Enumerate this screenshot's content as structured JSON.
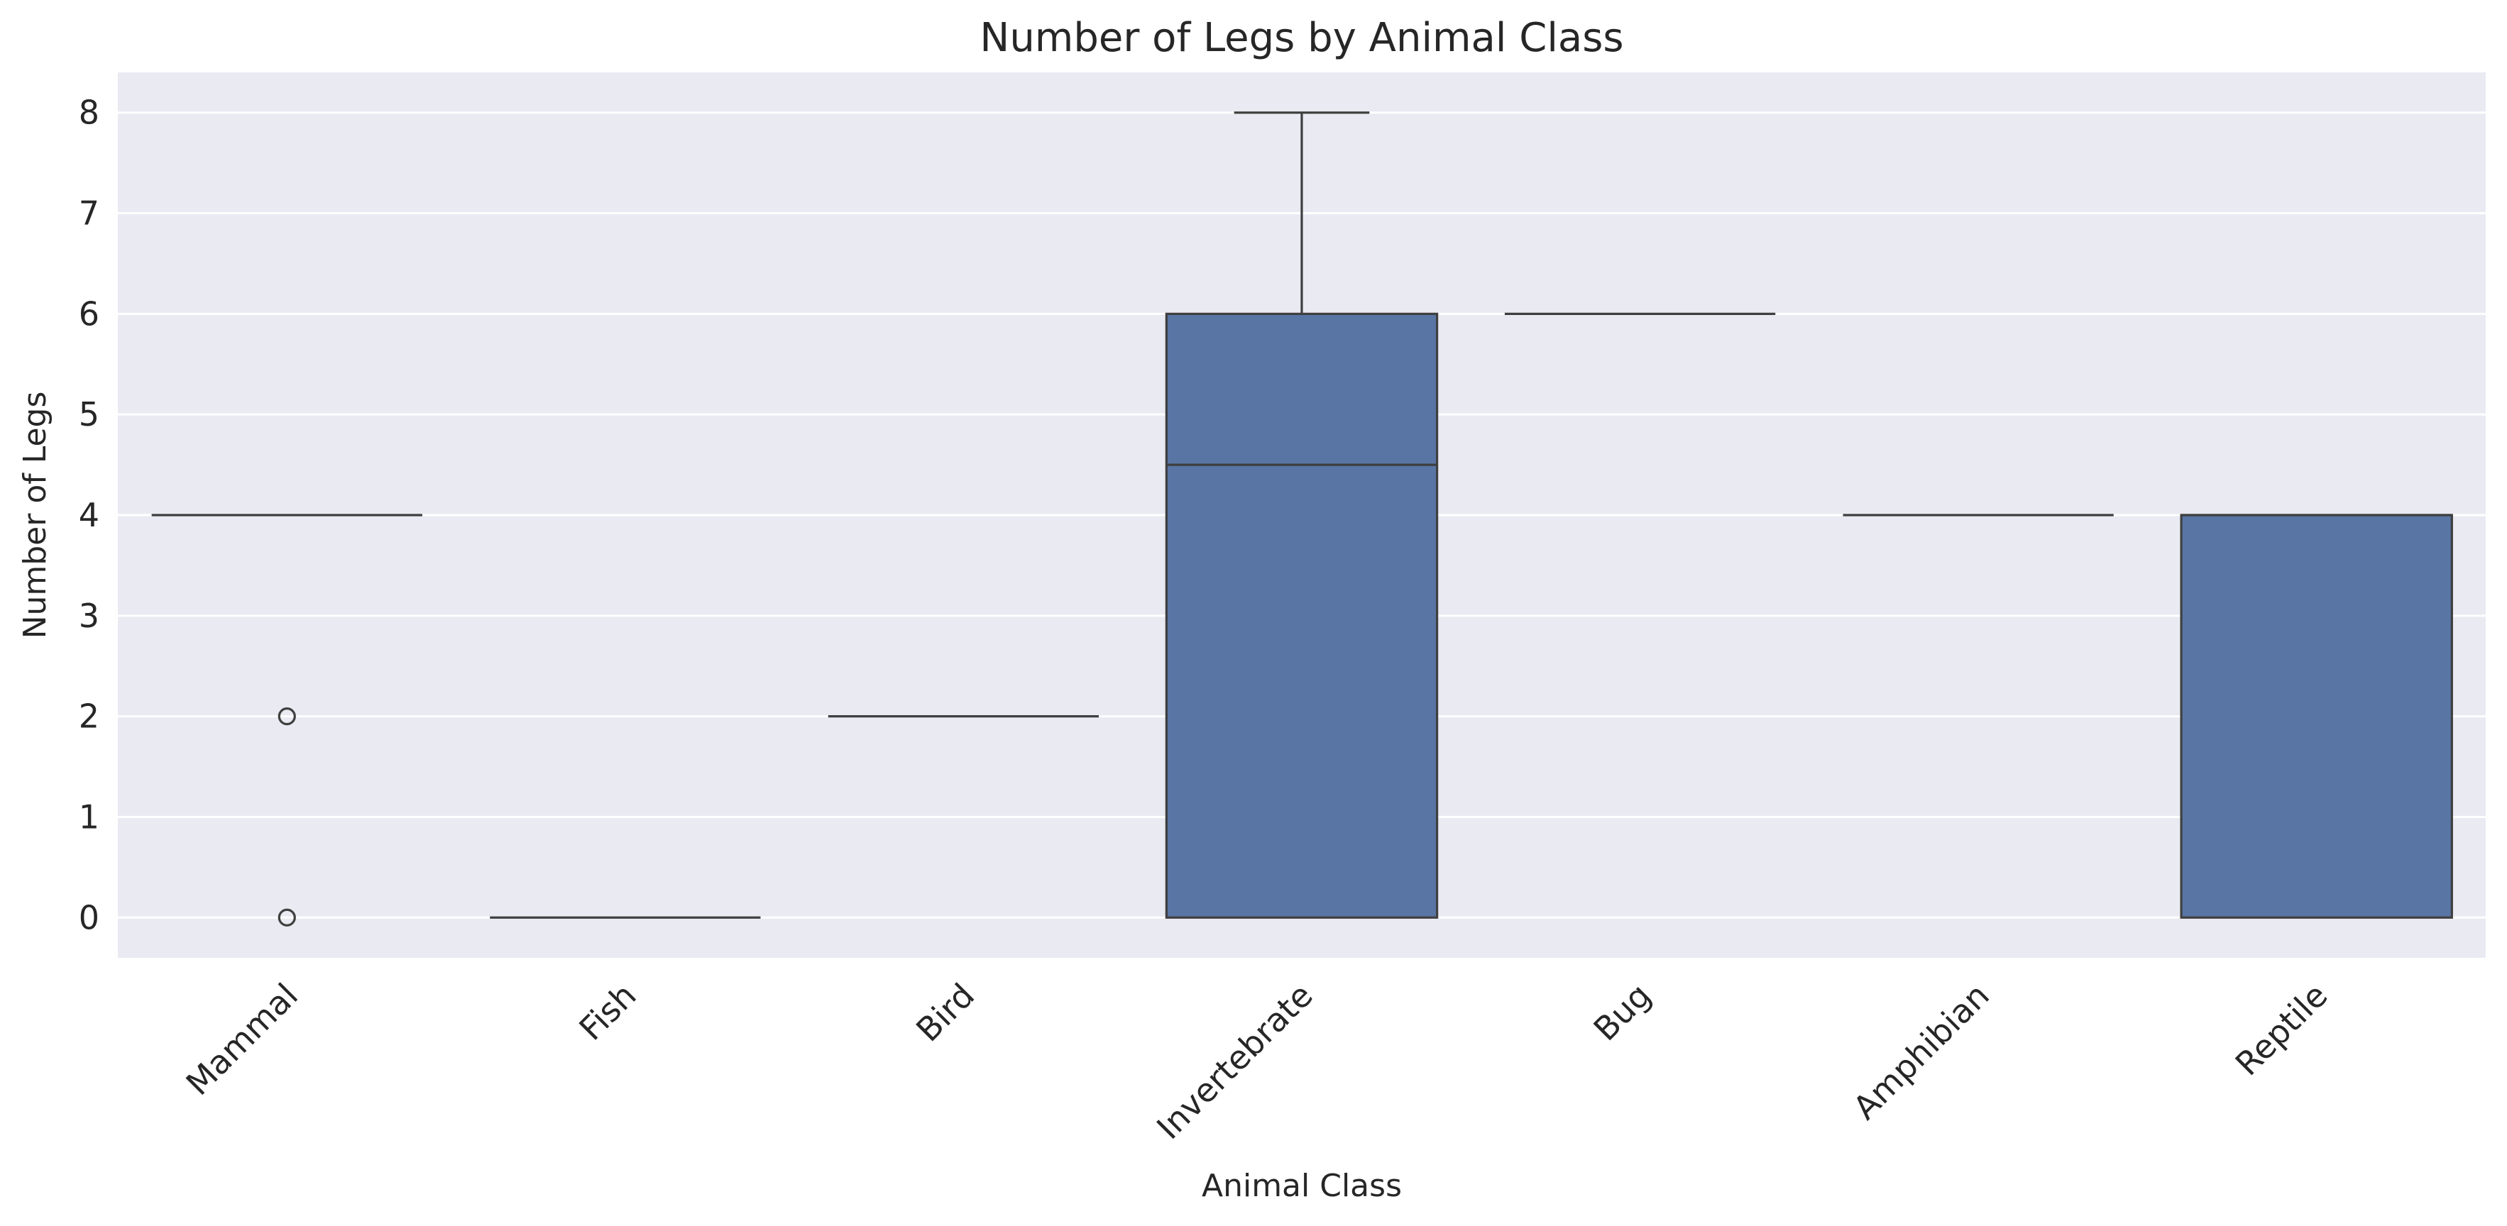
{
  "chart_data": {
    "type": "box",
    "title": "Number of Legs by Animal Class",
    "xlabel": "Animal Class",
    "ylabel": "Number of Legs",
    "ylim": [
      -0.4,
      8.4
    ],
    "yticks": [
      0,
      1,
      2,
      3,
      4,
      5,
      6,
      7,
      8
    ],
    "grid": true,
    "categories": [
      "Mammal",
      "Fish",
      "Bird",
      "Invertebrate",
      "Bug",
      "Amphibian",
      "Reptile"
    ],
    "boxes": [
      {
        "category": "Mammal",
        "whisker_low": 4,
        "q1": 4,
        "median": 4,
        "q3": 4,
        "whisker_high": 4,
        "outliers": [
          2,
          0
        ]
      },
      {
        "category": "Fish",
        "whisker_low": 0,
        "q1": 0,
        "median": 0,
        "q3": 0,
        "whisker_high": 0,
        "outliers": []
      },
      {
        "category": "Bird",
        "whisker_low": 2,
        "q1": 2,
        "median": 2,
        "q3": 2,
        "whisker_high": 2,
        "outliers": []
      },
      {
        "category": "Invertebrate",
        "whisker_low": 0,
        "q1": 0,
        "median": 4.5,
        "q3": 6,
        "whisker_high": 8,
        "outliers": []
      },
      {
        "category": "Bug",
        "whisker_low": 6,
        "q1": 6,
        "median": 6,
        "q3": 6,
        "whisker_high": 6,
        "outliers": []
      },
      {
        "category": "Amphibian",
        "whisker_low": 4,
        "q1": 4,
        "median": 4,
        "q3": 4,
        "whisker_high": 4,
        "outliers": []
      },
      {
        "category": "Reptile",
        "whisker_low": 0,
        "q1": 0,
        "median": 4,
        "q3": 4,
        "whisker_high": 4,
        "outliers": []
      }
    ],
    "colors": {
      "box_fill": "#5875a4",
      "line": "#3f3f3f",
      "plot_background": "#eaeaf2",
      "grid": "#ffffff",
      "text": "#262626"
    }
  }
}
